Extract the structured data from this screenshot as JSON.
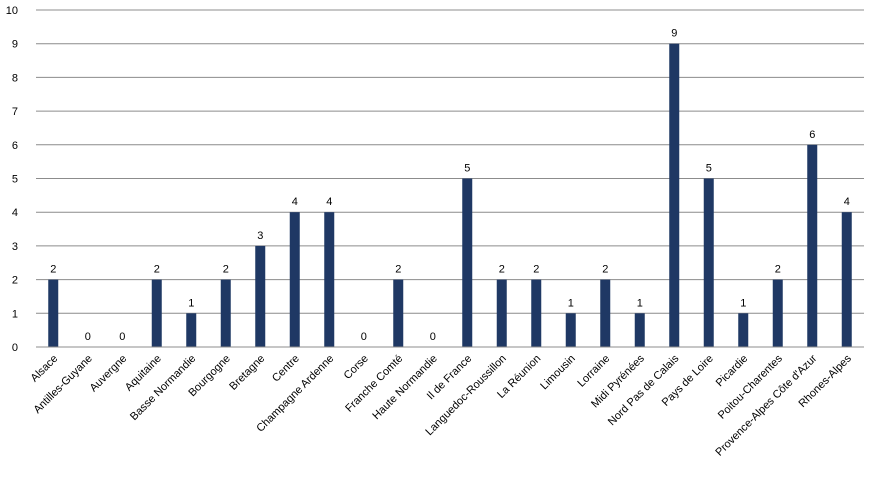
{
  "chart_data": {
    "type": "bar",
    "title": "",
    "xlabel": "",
    "ylabel": "",
    "ylim": [
      0,
      10
    ],
    "yticks": [
      0,
      1,
      2,
      3,
      4,
      5,
      6,
      7,
      8,
      9,
      10
    ],
    "grid": true,
    "legend": "none",
    "bar_color": "#1f3864",
    "grid_color": "#8c8c8c",
    "categories": [
      "Alsace",
      "Antilles-Guyane",
      "Auvergne",
      "Aquitaine",
      "Basse Normandie",
      "Bourgogne",
      "Bretagne",
      "Centre",
      "Champagne Ardenne",
      "Corse",
      "Franche Comté",
      "Haute Normandie",
      "Il de France",
      "Languedoc-Roussillon",
      "La Réunion",
      "Limousin",
      "Lorraine",
      "Midi Pyrénées",
      "Nord Pas de Calais",
      "Pays de Loire",
      "Picardie",
      "Poitou-Charentes",
      "Provence-Alpes Côte d'Azur",
      "Rhones-Alpes"
    ],
    "values": [
      2,
      0,
      0,
      2,
      1,
      2,
      3,
      4,
      4,
      0,
      2,
      0,
      5,
      2,
      2,
      1,
      2,
      1,
      9,
      5,
      1,
      2,
      6,
      4
    ]
  }
}
